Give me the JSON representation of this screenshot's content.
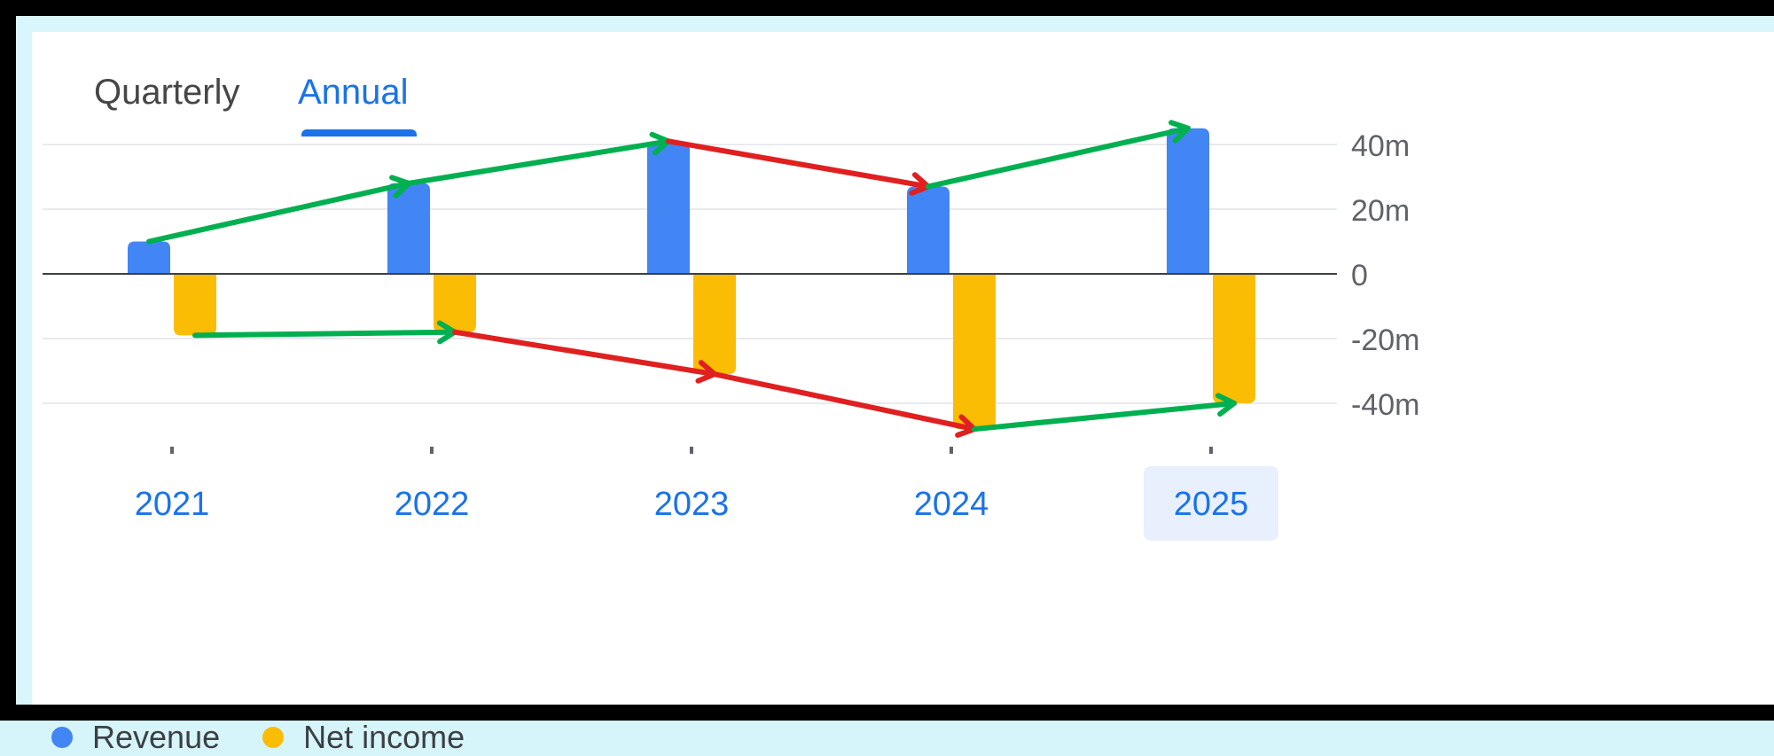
{
  "tabs": [
    {
      "label": "Quarterly",
      "active": false
    },
    {
      "label": "Annual",
      "active": true
    }
  ],
  "selected_category": "2025",
  "chart_data": {
    "type": "bar",
    "categories": [
      "2021",
      "2022",
      "2023",
      "2024",
      "2025"
    ],
    "series": [
      {
        "name": "Revenue",
        "color": "#4285f4",
        "values": [
          10,
          28,
          41,
          27,
          45
        ]
      },
      {
        "name": "Net income",
        "color": "#fbbc04",
        "values": [
          -19,
          -18,
          -31,
          -48,
          -40
        ]
      }
    ],
    "y_ticks": [
      {
        "value": 40,
        "label": "40m"
      },
      {
        "value": 20,
        "label": "20m"
      },
      {
        "value": 0,
        "label": "0"
      },
      {
        "value": -20,
        "label": "-20m"
      },
      {
        "value": -40,
        "label": "-40m"
      }
    ],
    "ylim": [
      -50,
      45
    ],
    "grid": true,
    "axis_position": "right",
    "legend_position": "bottom-left",
    "annotations": {
      "up_color": "#00b050",
      "down_color": "#e02020",
      "revenue_trend": [
        "up",
        "up",
        "down",
        "up"
      ],
      "net_income_trend": [
        "up",
        "down",
        "down",
        "up"
      ]
    }
  }
}
